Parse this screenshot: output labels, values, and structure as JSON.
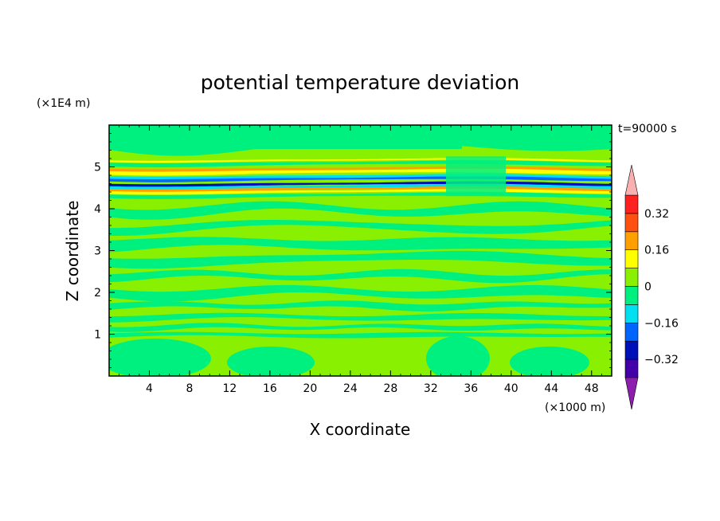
{
  "chart_data": {
    "type": "heatmap",
    "title": "potential temperature deviation",
    "xlabel": "X coordinate",
    "ylabel": "Z coordinate",
    "x_unit": "(×1000 m)",
    "y_unit": "(×1E4 m)",
    "time_label": "t=90000 s",
    "xlim": [
      0,
      50
    ],
    "ylim": [
      0,
      6
    ],
    "x_ticks": [
      4,
      8,
      12,
      16,
      20,
      24,
      28,
      32,
      36,
      40,
      44,
      48
    ],
    "x_tick_labels": [
      "4",
      "8",
      "12",
      "16",
      "20",
      "24",
      "28",
      "32",
      "36",
      "40",
      "44",
      "48"
    ],
    "y_ticks": [
      1,
      2,
      3,
      4,
      5
    ],
    "y_tick_labels": [
      "1",
      "2",
      "3",
      "4",
      "5"
    ],
    "colorbar": {
      "levels": [
        -0.4,
        -0.32,
        -0.24,
        -0.16,
        -0.08,
        0,
        0.08,
        0.16,
        0.24,
        0.32,
        0.4
      ],
      "labels": [
        "0.32",
        "0.16",
        "0",
        "−0.16",
        "−0.32"
      ],
      "label_values": [
        0.32,
        0.16,
        0,
        -0.16,
        -0.32
      ],
      "colors": [
        "#8c1fae",
        "#4400a8",
        "#0010b8",
        "#0064ff",
        "#00e0f0",
        "#00f080",
        "#88f000",
        "#ffff00",
        "#ffa000",
        "#ff5010",
        "#ff2020",
        "#f8b0b0"
      ]
    },
    "colors": {
      "band_neg": "#00f080",
      "band_pos": "#88f000",
      "bg": "#ffffff"
    }
  }
}
